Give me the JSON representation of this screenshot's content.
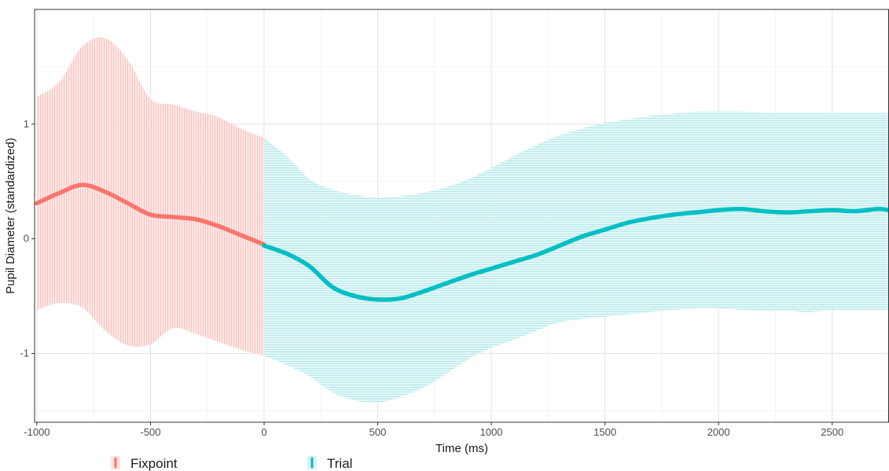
{
  "chart_data": {
    "type": "line",
    "xlabel": "Time (ms)",
    "ylabel": "Pupil Diameter (standardized)",
    "xlim": [
      -1010,
      2750
    ],
    "ylim": [
      -1.6,
      2.0
    ],
    "x_ticks": [
      -1000,
      -500,
      0,
      500,
      1000,
      1500,
      2000,
      2500
    ],
    "y_ticks": [
      -1,
      0,
      1
    ],
    "grid": true,
    "legend_position": "bottom",
    "series": [
      {
        "name": "Fixpoint",
        "color": "#f8766d",
        "ribbon_color": "#f8766d",
        "x": [
          -1000,
          -900,
          -800,
          -700,
          -600,
          -500,
          -400,
          -300,
          -200,
          -100,
          0
        ],
        "y": [
          0.31,
          0.4,
          0.47,
          0.41,
          0.31,
          0.21,
          0.19,
          0.17,
          0.11,
          0.03,
          -0.05
        ],
        "lower": [
          -0.62,
          -0.56,
          -0.6,
          -0.8,
          -0.93,
          -0.92,
          -0.78,
          -0.83,
          -0.9,
          -0.97,
          -1.02
        ],
        "upper": [
          1.24,
          1.37,
          1.68,
          1.75,
          1.56,
          1.22,
          1.17,
          1.11,
          1.06,
          0.96,
          0.88
        ]
      },
      {
        "name": "Trial",
        "color": "#00bfc4",
        "ribbon_color": "#00bfc4",
        "x": [
          0,
          100,
          200,
          300,
          400,
          500,
          600,
          700,
          800,
          900,
          1000,
          1100,
          1200,
          1300,
          1400,
          1500,
          1600,
          1700,
          1800,
          1900,
          2000,
          2100,
          2200,
          2300,
          2400,
          2500,
          2600,
          2700,
          2750
        ],
        "y": [
          -0.06,
          -0.13,
          -0.24,
          -0.42,
          -0.5,
          -0.53,
          -0.52,
          -0.46,
          -0.39,
          -0.32,
          -0.26,
          -0.2,
          -0.14,
          -0.06,
          0.02,
          0.08,
          0.14,
          0.18,
          0.21,
          0.23,
          0.25,
          0.26,
          0.24,
          0.23,
          0.24,
          0.25,
          0.24,
          0.26,
          0.25
        ],
        "lower": [
          -1.02,
          -1.1,
          -1.2,
          -1.34,
          -1.41,
          -1.43,
          -1.38,
          -1.3,
          -1.18,
          -1.05,
          -0.95,
          -0.88,
          -0.8,
          -0.73,
          -0.7,
          -0.68,
          -0.66,
          -0.64,
          -0.62,
          -0.61,
          -0.61,
          -0.62,
          -0.63,
          -0.63,
          -0.64,
          -0.62,
          -0.62,
          -0.62,
          -0.62
        ],
        "upper": [
          0.88,
          0.72,
          0.52,
          0.43,
          0.38,
          0.36,
          0.37,
          0.4,
          0.45,
          0.52,
          0.62,
          0.72,
          0.82,
          0.9,
          0.96,
          1.01,
          1.04,
          1.07,
          1.09,
          1.11,
          1.11,
          1.11,
          1.1,
          1.1,
          1.1,
          1.1,
          1.1,
          1.1,
          1.1
        ]
      }
    ]
  }
}
